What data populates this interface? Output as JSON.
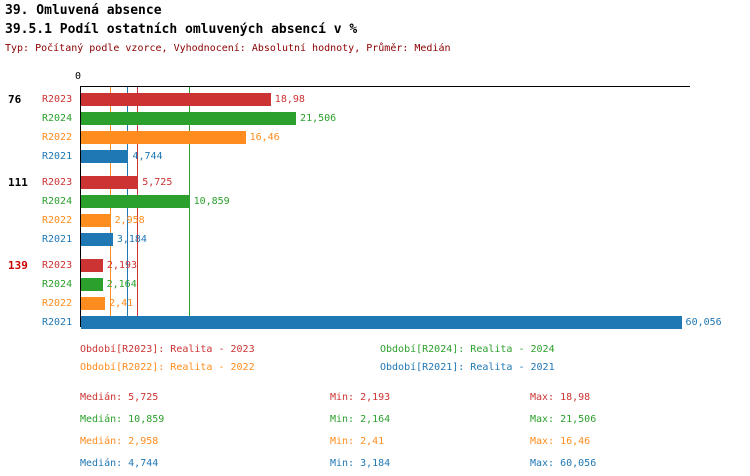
{
  "header": {
    "title": "39. Omluvená absence",
    "subtitle": "39.5.1 Podíl ostatních omluvených absencí v %",
    "meta": "Typ: Počítaný podle vzorce, Vyhodnocení: Absolutní hodnoty, Průměr: Medián"
  },
  "colors": {
    "R2023": "#cc3333",
    "R2024": "#2ca02c",
    "R2022": "#ff8c1e",
    "R2021": "#1f77b4",
    "meta_text": "#8b0000",
    "group_highlight": "#cc0000"
  },
  "chart_data": {
    "type": "bar",
    "orientation": "horizontal",
    "title": "39.5.1 Podíl ostatních omluvených absencí v %",
    "unit": "%",
    "x_axis": {
      "zero_label": "0",
      "min": 0,
      "max": 61
    },
    "categories": [
      "76",
      "111",
      "139"
    ],
    "series": [
      {
        "name": "R2023",
        "values": [
          18.98,
          5.725,
          2.193
        ]
      },
      {
        "name": "R2024",
        "values": [
          21.506,
          10.859,
          2.164
        ]
      },
      {
        "name": "R2022",
        "values": [
          16.46,
          2.958,
          2.41
        ]
      },
      {
        "name": "R2021",
        "values": [
          4.744,
          3.184,
          60.056
        ]
      }
    ],
    "groups": [
      {
        "label": "76",
        "highlight": false,
        "bars": [
          {
            "series": "R2023",
            "value": 18.98,
            "display": "18,98"
          },
          {
            "series": "R2024",
            "value": 21.506,
            "display": "21,506"
          },
          {
            "series": "R2022",
            "value": 16.46,
            "display": "16,46"
          },
          {
            "series": "R2021",
            "value": 4.744,
            "display": "4,744"
          }
        ]
      },
      {
        "label": "111",
        "highlight": false,
        "bars": [
          {
            "series": "R2023",
            "value": 5.725,
            "display": "5,725"
          },
          {
            "series": "R2024",
            "value": 10.859,
            "display": "10,859"
          },
          {
            "series": "R2022",
            "value": 2.958,
            "display": "2,958"
          },
          {
            "series": "R2021",
            "value": 3.184,
            "display": "3,184"
          }
        ]
      },
      {
        "label": "139",
        "highlight": true,
        "bars": [
          {
            "series": "R2023",
            "value": 2.193,
            "display": "2,193"
          },
          {
            "series": "R2024",
            "value": 2.164,
            "display": "2,164"
          },
          {
            "series": "R2022",
            "value": 2.41,
            "display": "2,41"
          },
          {
            "series": "R2021",
            "value": 60.056,
            "display": "60,056"
          }
        ]
      }
    ],
    "median_lines": [
      {
        "series": "R2023",
        "value": 5.725
      },
      {
        "series": "R2024",
        "value": 10.859
      },
      {
        "series": "R2022",
        "value": 2.958
      },
      {
        "series": "R2021",
        "value": 4.744
      }
    ]
  },
  "legend": [
    {
      "series": "R2023",
      "label": "Období[R2023]: Realita - 2023"
    },
    {
      "series": "R2024",
      "label": "Období[R2024]: Realita - 2024"
    },
    {
      "series": "R2022",
      "label": "Období[R2022]: Realita - 2022"
    },
    {
      "series": "R2021",
      "label": "Období[R2021]: Realita - 2021"
    }
  ],
  "stats": [
    {
      "series": "R2023",
      "median": "Medián: 5,725",
      "min": "Min: 2,193",
      "max": "Max: 18,98"
    },
    {
      "series": "R2024",
      "median": "Medián: 10,859",
      "min": "Min: 2,164",
      "max": "Max: 21,506"
    },
    {
      "series": "R2022",
      "median": "Medián: 2,958",
      "min": "Min: 2,41",
      "max": "Max: 16,46"
    },
    {
      "series": "R2021",
      "median": "Medián: 4,744",
      "min": "Min: 3,184",
      "max": "Max: 60,056"
    }
  ]
}
